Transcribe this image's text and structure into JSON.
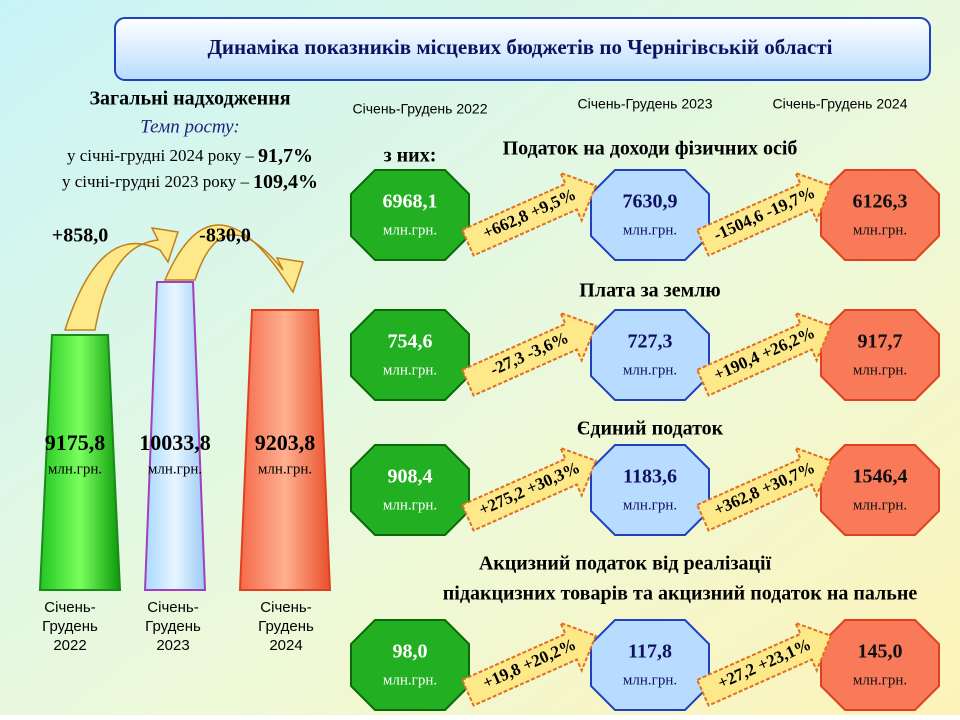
{
  "header": {
    "title": "Динаміка показників  місцевих бюджетів по Чернігівській області"
  },
  "total": {
    "title": "Загальні  надходження",
    "growth_label": "Темп росту:",
    "growth": [
      {
        "text": "у січні-грудні 2024 року –",
        "value": "91,7%"
      },
      {
        "text": "у січні-грудні 2023 року –",
        "value": "109,4%"
      }
    ],
    "changes": [
      "+858,0",
      "-830,0"
    ],
    "towers": [
      {
        "value": "9175,8",
        "unit": "млн.грн.",
        "period": [
          "Січень-",
          "Грудень",
          "2022"
        ]
      },
      {
        "value": "10033,8",
        "unit": "млн.грн.",
        "period": [
          "Січень-",
          "Грудень",
          "2023"
        ]
      },
      {
        "value": "9203,8",
        "unit": "млн.грн.",
        "period": [
          "Січень-",
          "Грудень",
          "2024"
        ]
      }
    ]
  },
  "periods": [
    "Січень-Грудень 2022",
    "Січень-Грудень 2023",
    "Січень-Грудень 2024"
  ],
  "of_which": "з них:",
  "taxes": [
    {
      "title": [
        "Податок на доходи фізичних осіб"
      ],
      "values": [
        "6968,1",
        "7630,9",
        "6126,3"
      ],
      "unit": "млн.грн.",
      "changes": [
        "+662,8 +9,5%",
        "-1504,6 -19,7%"
      ]
    },
    {
      "title": [
        "Плата за землю"
      ],
      "values": [
        "754,6",
        "727,3",
        "917,7"
      ],
      "unit": "млн.грн.",
      "changes": [
        "-27,3 -3,6%",
        "+190,4 +26,2%"
      ]
    },
    {
      "title": [
        "Єдиний податок"
      ],
      "values": [
        "908,4",
        "1183,6",
        "1546,4"
      ],
      "unit": "млн.грн.",
      "changes": [
        "+275,2 +30,3%",
        "+362,8 +30,7%"
      ]
    },
    {
      "title": [
        "Акцизний податок від реалізації",
        "підакцизних товарів та акцизний податок на пальне"
      ],
      "values": [
        "98,0",
        "117,8",
        "145,0"
      ],
      "unit": "млн.грн.",
      "changes": [
        "+19,8 +20,2%",
        "+27,2 +23,1%"
      ]
    }
  ]
}
